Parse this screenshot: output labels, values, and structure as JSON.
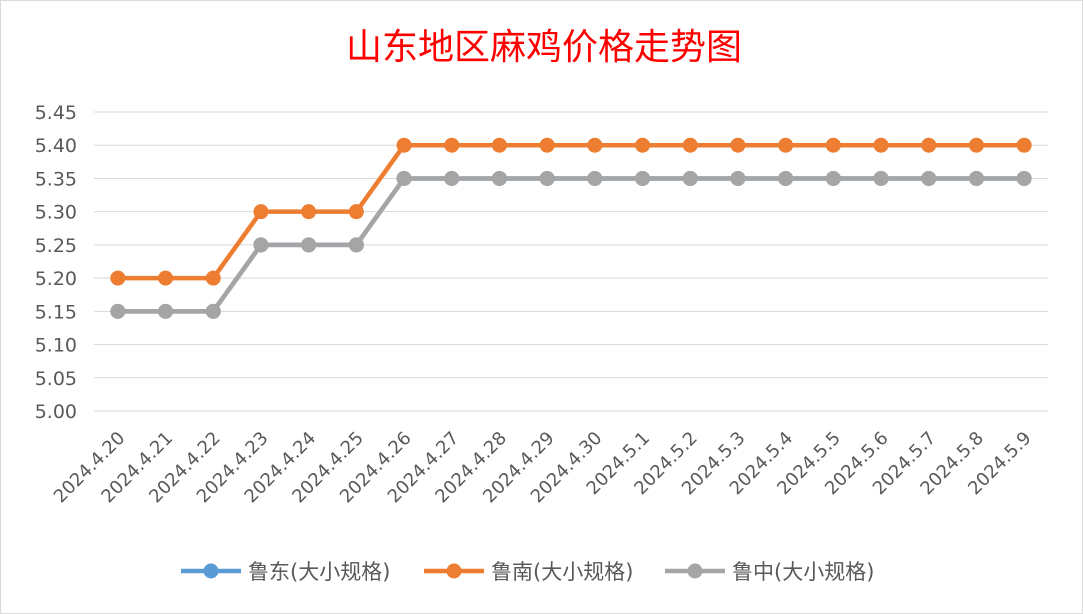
{
  "chart_data": {
    "type": "line",
    "title": "山东地区麻鸡价格走势图",
    "categories": [
      "2024.4.20",
      "2024.4.21",
      "2024.4.22",
      "2024.4.23",
      "2024.4.24",
      "2024.4.25",
      "2024.4.26",
      "2024.4.27",
      "2024.4.28",
      "2024.4.29",
      "2024.4.30",
      "2024.5.1",
      "2024.5.2",
      "2024.5.3",
      "2024.5.4",
      "2024.5.5",
      "2024.5.6",
      "2024.5.7",
      "2024.5.8",
      "2024.5.9"
    ],
    "ylim": [
      5.0,
      5.45
    ],
    "yticks": [
      "5.00",
      "5.05",
      "5.10",
      "5.15",
      "5.20",
      "5.25",
      "5.30",
      "5.35",
      "5.40",
      "5.45"
    ],
    "grid": true,
    "legend_position": "bottom",
    "series": [
      {
        "name": "鲁东(大小规格)",
        "color": "#5b9bd5",
        "values": [
          5.15,
          5.15,
          5.15,
          5.25,
          5.25,
          5.25,
          5.35,
          5.35,
          5.35,
          5.35,
          5.35,
          5.35,
          5.35,
          5.35,
          5.35,
          5.35,
          5.35,
          5.35,
          5.35,
          5.35
        ]
      },
      {
        "name": "鲁南(大小规格)",
        "color": "#ed7d31",
        "values": [
          5.2,
          5.2,
          5.2,
          5.3,
          5.3,
          5.3,
          5.4,
          5.4,
          5.4,
          5.4,
          5.4,
          5.4,
          5.4,
          5.4,
          5.4,
          5.4,
          5.4,
          5.4,
          5.4,
          5.4
        ]
      },
      {
        "name": "鲁中(大小规格)",
        "color": "#a5a5a5",
        "values": [
          5.15,
          5.15,
          5.15,
          5.25,
          5.25,
          5.25,
          5.35,
          5.35,
          5.35,
          5.35,
          5.35,
          5.35,
          5.35,
          5.35,
          5.35,
          5.35,
          5.35,
          5.35,
          5.35,
          5.35
        ]
      }
    ]
  }
}
